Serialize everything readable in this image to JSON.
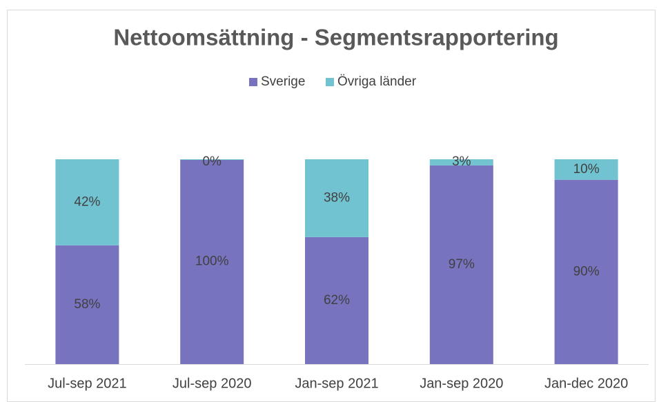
{
  "chart_data": {
    "type": "stacked_bar",
    "title": "Nettoomsättning - Segmentsrapportering",
    "categories": [
      "Jul-sep 2021",
      "Jul-sep 2020",
      "Jan-sep 2021",
      "Jan-sep 2020",
      "Jan-dec 2020"
    ],
    "series": [
      {
        "name": "Sverige",
        "color": "#7773bf",
        "values": [
          58,
          100,
          62,
          97,
          90
        ],
        "value_labels": [
          "58%",
          "100%",
          "62%",
          "97%",
          "90%"
        ]
      },
      {
        "name": "Övriga länder",
        "color": "#72c3d1",
        "values": [
          42,
          0,
          38,
          3,
          10
        ],
        "value_labels": [
          "42%",
          "0%",
          "38%",
          "3%",
          "10%"
        ]
      }
    ],
    "legend": "top"
  }
}
